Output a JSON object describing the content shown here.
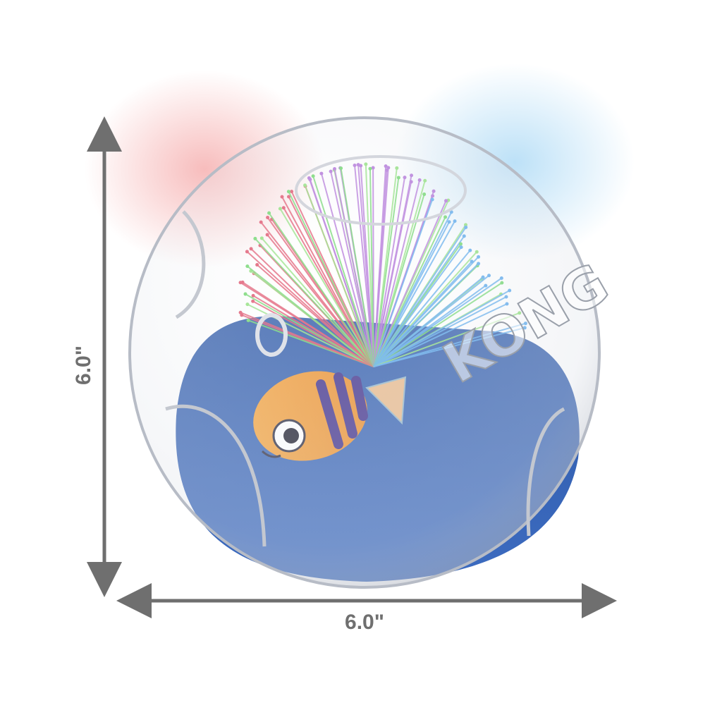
{
  "dimensions": {
    "height": "6.0\"",
    "width": "6.0\""
  },
  "product": {
    "brand": "KONG"
  }
}
